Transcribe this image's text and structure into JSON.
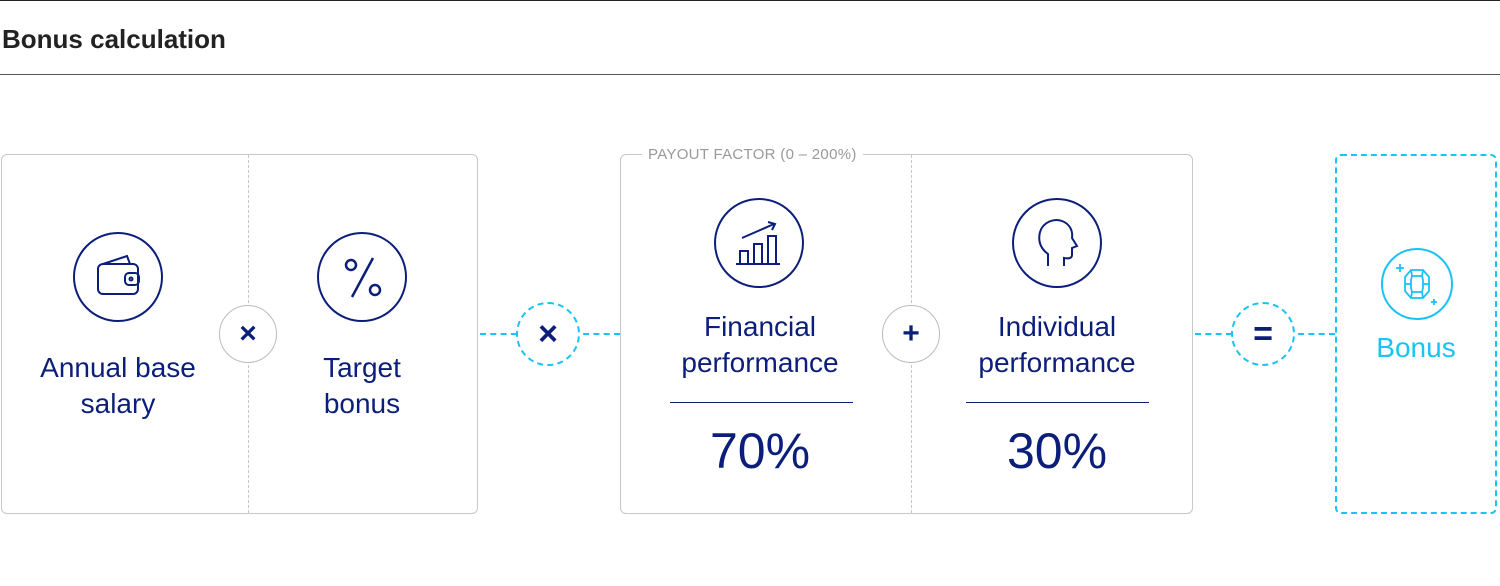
{
  "title": "Bonus calculation",
  "colors": {
    "primary": "#0b1e7a",
    "accent": "#19c3f5",
    "border": "#c8c8c8"
  },
  "base": {
    "salary_label": "Annual base salary",
    "salary_l1": "Annual base",
    "salary_l2": "salary",
    "salary_icon": "wallet-icon",
    "target_l1": "Target",
    "target_l2": "bonus",
    "target_icon": "percent-icon",
    "operator": "×"
  },
  "connector1": "×",
  "payout": {
    "label": "PAYOUT FACTOR (0 – 200%)",
    "operator": "+",
    "financial": {
      "l1": "Financial",
      "l2": "performance",
      "value": "70%",
      "icon": "bar-chart-growth-icon"
    },
    "individual": {
      "l1": "Individual",
      "l2": "performance",
      "value": "30%",
      "icon": "head-profile-icon"
    }
  },
  "connector2": "=",
  "result": {
    "label": "Bonus",
    "icon": "gem-icon"
  }
}
